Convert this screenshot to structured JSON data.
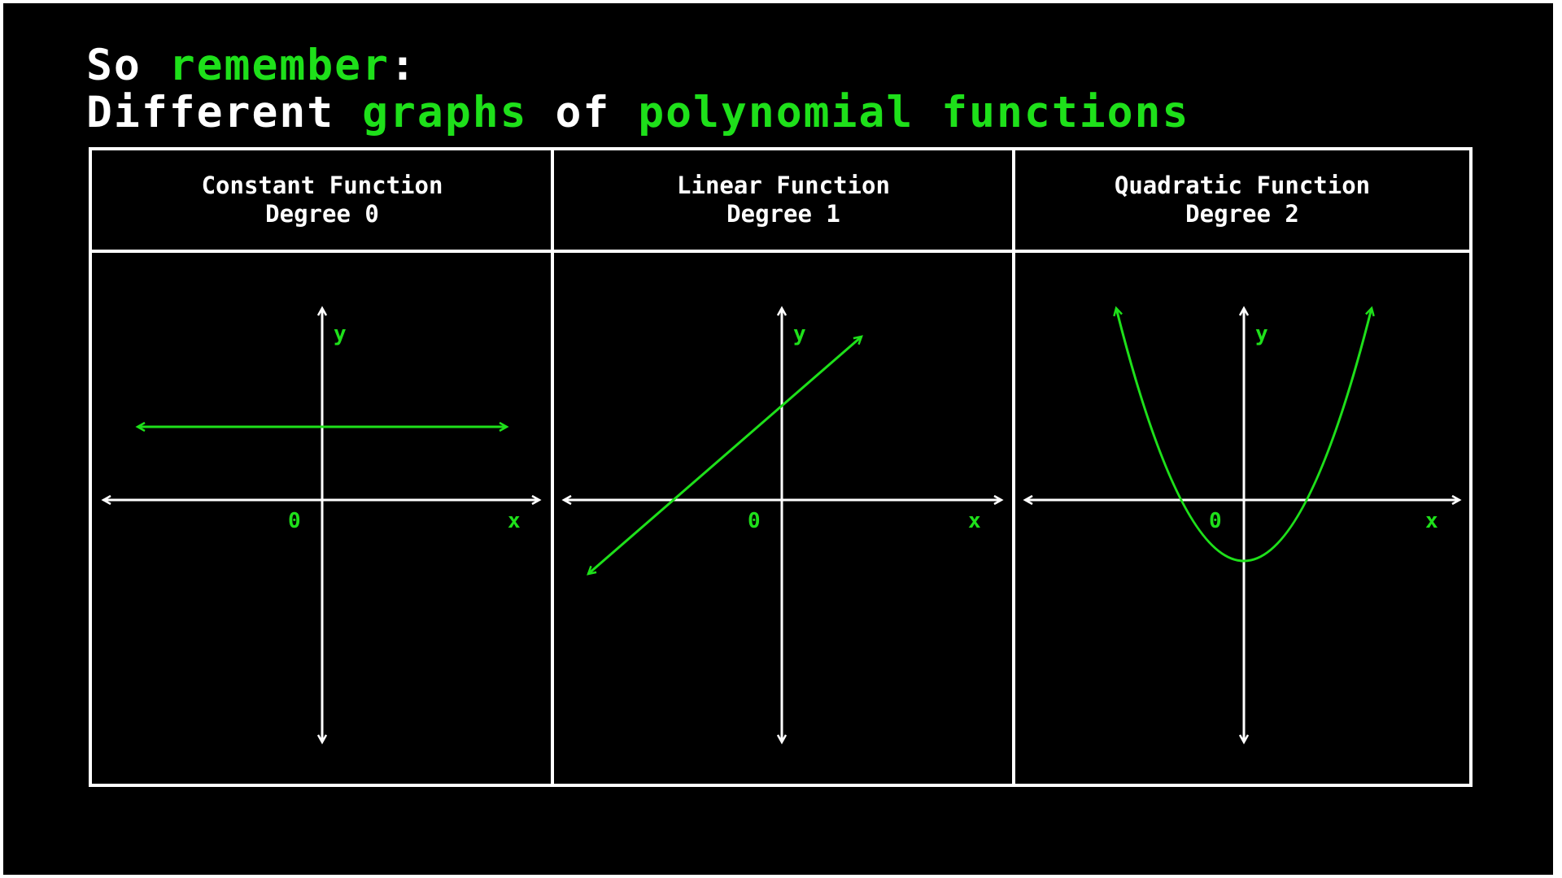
{
  "heading": {
    "line1": [
      {
        "text": "So ",
        "accent": false
      },
      {
        "text": "remember",
        "accent": true
      },
      {
        "text": ":",
        "accent": false
      }
    ],
    "line2": [
      {
        "text": "Different ",
        "accent": false
      },
      {
        "text": "graphs",
        "accent": true
      },
      {
        "text": " of ",
        "accent": false
      },
      {
        "text": "polynomial functions",
        "accent": true
      }
    ]
  },
  "colors": {
    "background": "#000000",
    "text": "#ffffff",
    "accent": "#1ee01a"
  },
  "panels": [
    {
      "title": "Constant Function",
      "subtitle": "Degree 0",
      "x_label": "x",
      "y_label": "y",
      "origin_label": "0"
    },
    {
      "title": "Linear Function",
      "subtitle": "Degree 1",
      "x_label": "x",
      "y_label": "y",
      "origin_label": "0"
    },
    {
      "title": "Quadratic Function",
      "subtitle": "Degree 2",
      "x_label": "x",
      "y_label": "y",
      "origin_label": "0"
    }
  ]
}
